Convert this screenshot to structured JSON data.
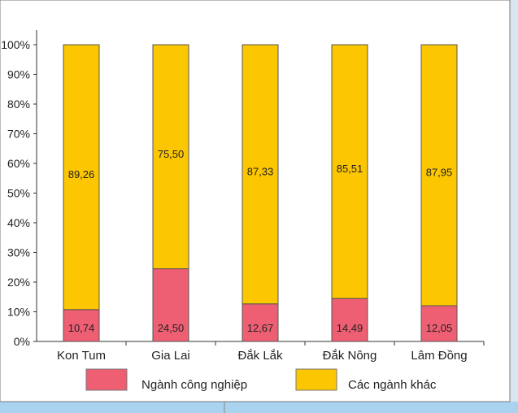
{
  "chart_data": {
    "type": "bar",
    "stacked": true,
    "categories": [
      "Kon Tum",
      "Gia Lai",
      "Đắk Lắk",
      "Đắk Nông",
      "Lâm Đồng"
    ],
    "series": [
      {
        "name": "Ngành công nghiệp",
        "values": [
          10.74,
          24.5,
          12.67,
          14.49,
          12.05
        ],
        "labels": [
          "10,74",
          "24,50",
          "12,67",
          "14,49",
          "12,05"
        ],
        "color": "#ef5f73"
      },
      {
        "name": "Các ngành khác",
        "values": [
          89.26,
          75.5,
          87.33,
          85.51,
          87.95
        ],
        "labels": [
          "89,26",
          "75,50",
          "87,33",
          "85,51",
          "87,95"
        ],
        "color": "#fcc600"
      }
    ],
    "yticks": [
      "0%",
      "10%",
      "20%",
      "30%",
      "40%",
      "50%",
      "60%",
      "70%",
      "80%",
      "90%",
      "100%"
    ],
    "ylim": [
      0,
      100
    ],
    "grid": false,
    "legend_position": "bottom"
  }
}
